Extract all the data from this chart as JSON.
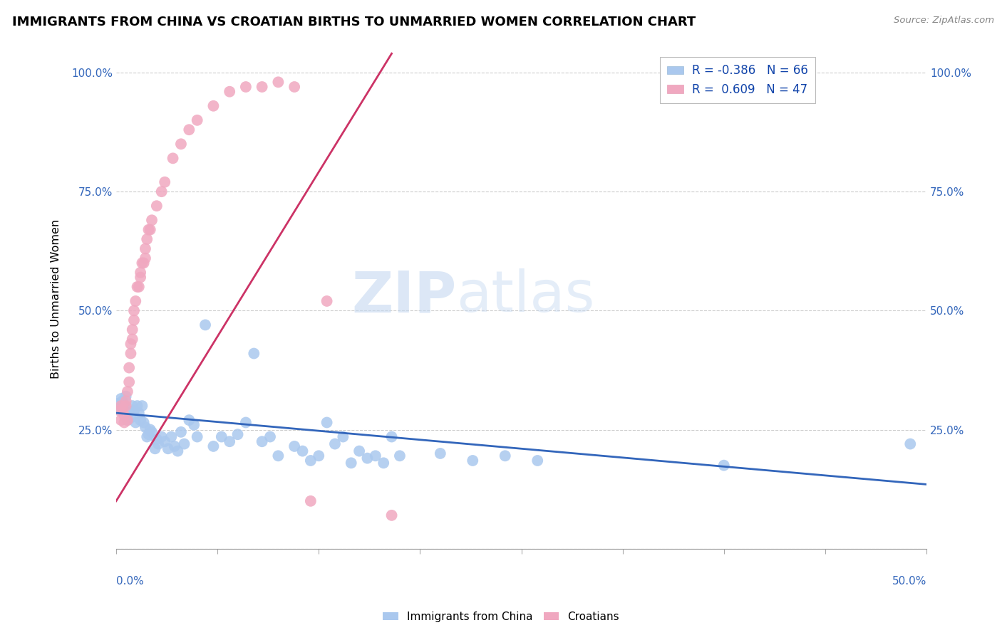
{
  "title": "IMMIGRANTS FROM CHINA VS CROATIAN BIRTHS TO UNMARRIED WOMEN CORRELATION CHART",
  "source": "Source: ZipAtlas.com",
  "ylabel": "Births to Unmarried Women",
  "xlim": [
    0.0,
    0.5
  ],
  "ylim": [
    0.0,
    1.05
  ],
  "yticks": [
    0.0,
    0.25,
    0.5,
    0.75,
    1.0
  ],
  "ytick_labels": [
    "",
    "25.0%",
    "50.0%",
    "75.0%",
    "100.0%"
  ],
  "legend_r_blue": "-0.386",
  "legend_n_blue": "66",
  "legend_r_pink": "0.609",
  "legend_n_pink": "47",
  "watermark_zip": "ZIP",
  "watermark_atlas": "atlas",
  "blue_color": "#aac8ee",
  "pink_color": "#f0a8c0",
  "trend_blue": "#3366bb",
  "trend_pink": "#cc3366",
  "blue_trend_x0": 0.0,
  "blue_trend_y0": 0.285,
  "blue_trend_x1": 0.5,
  "blue_trend_y1": 0.135,
  "pink_trend_x0": 0.0,
  "pink_trend_y0": 0.1,
  "pink_trend_x1": 0.17,
  "pink_trend_y1": 1.04,
  "blue_dots": [
    [
      0.001,
      0.305
    ],
    [
      0.002,
      0.295
    ],
    [
      0.003,
      0.315
    ],
    [
      0.004,
      0.31
    ],
    [
      0.005,
      0.3
    ],
    [
      0.006,
      0.32
    ],
    [
      0.007,
      0.27
    ],
    [
      0.008,
      0.285
    ],
    [
      0.009,
      0.275
    ],
    [
      0.01,
      0.3
    ],
    [
      0.011,
      0.29
    ],
    [
      0.012,
      0.265
    ],
    [
      0.013,
      0.3
    ],
    [
      0.014,
      0.285
    ],
    [
      0.015,
      0.27
    ],
    [
      0.016,
      0.3
    ],
    [
      0.017,
      0.265
    ],
    [
      0.018,
      0.255
    ],
    [
      0.019,
      0.235
    ],
    [
      0.02,
      0.24
    ],
    [
      0.021,
      0.25
    ],
    [
      0.022,
      0.245
    ],
    [
      0.024,
      0.21
    ],
    [
      0.025,
      0.23
    ],
    [
      0.026,
      0.22
    ],
    [
      0.028,
      0.235
    ],
    [
      0.03,
      0.225
    ],
    [
      0.032,
      0.21
    ],
    [
      0.034,
      0.235
    ],
    [
      0.036,
      0.215
    ],
    [
      0.038,
      0.205
    ],
    [
      0.04,
      0.245
    ],
    [
      0.042,
      0.22
    ],
    [
      0.045,
      0.27
    ],
    [
      0.048,
      0.26
    ],
    [
      0.05,
      0.235
    ],
    [
      0.055,
      0.47
    ],
    [
      0.06,
      0.215
    ],
    [
      0.065,
      0.235
    ],
    [
      0.07,
      0.225
    ],
    [
      0.075,
      0.24
    ],
    [
      0.08,
      0.265
    ],
    [
      0.085,
      0.41
    ],
    [
      0.09,
      0.225
    ],
    [
      0.095,
      0.235
    ],
    [
      0.1,
      0.195
    ],
    [
      0.11,
      0.215
    ],
    [
      0.115,
      0.205
    ],
    [
      0.12,
      0.185
    ],
    [
      0.125,
      0.195
    ],
    [
      0.13,
      0.265
    ],
    [
      0.135,
      0.22
    ],
    [
      0.14,
      0.235
    ],
    [
      0.145,
      0.18
    ],
    [
      0.15,
      0.205
    ],
    [
      0.155,
      0.19
    ],
    [
      0.16,
      0.195
    ],
    [
      0.165,
      0.18
    ],
    [
      0.17,
      0.235
    ],
    [
      0.175,
      0.195
    ],
    [
      0.2,
      0.2
    ],
    [
      0.22,
      0.185
    ],
    [
      0.24,
      0.195
    ],
    [
      0.26,
      0.185
    ],
    [
      0.375,
      0.175
    ],
    [
      0.49,
      0.22
    ]
  ],
  "pink_dots": [
    [
      0.002,
      0.29
    ],
    [
      0.003,
      0.27
    ],
    [
      0.003,
      0.3
    ],
    [
      0.004,
      0.295
    ],
    [
      0.005,
      0.265
    ],
    [
      0.005,
      0.28
    ],
    [
      0.006,
      0.31
    ],
    [
      0.006,
      0.3
    ],
    [
      0.007,
      0.33
    ],
    [
      0.007,
      0.27
    ],
    [
      0.008,
      0.35
    ],
    [
      0.008,
      0.38
    ],
    [
      0.009,
      0.41
    ],
    [
      0.009,
      0.43
    ],
    [
      0.01,
      0.44
    ],
    [
      0.01,
      0.46
    ],
    [
      0.011,
      0.48
    ],
    [
      0.011,
      0.5
    ],
    [
      0.012,
      0.52
    ],
    [
      0.013,
      0.55
    ],
    [
      0.014,
      0.55
    ],
    [
      0.015,
      0.57
    ],
    [
      0.015,
      0.58
    ],
    [
      0.016,
      0.6
    ],
    [
      0.017,
      0.6
    ],
    [
      0.018,
      0.61
    ],
    [
      0.018,
      0.63
    ],
    [
      0.019,
      0.65
    ],
    [
      0.02,
      0.67
    ],
    [
      0.021,
      0.67
    ],
    [
      0.022,
      0.69
    ],
    [
      0.025,
      0.72
    ],
    [
      0.028,
      0.75
    ],
    [
      0.03,
      0.77
    ],
    [
      0.035,
      0.82
    ],
    [
      0.04,
      0.85
    ],
    [
      0.045,
      0.88
    ],
    [
      0.05,
      0.9
    ],
    [
      0.06,
      0.93
    ],
    [
      0.07,
      0.96
    ],
    [
      0.08,
      0.97
    ],
    [
      0.09,
      0.97
    ],
    [
      0.1,
      0.98
    ],
    [
      0.11,
      0.97
    ],
    [
      0.12,
      0.1
    ],
    [
      0.13,
      0.52
    ],
    [
      0.17,
      0.07
    ]
  ]
}
